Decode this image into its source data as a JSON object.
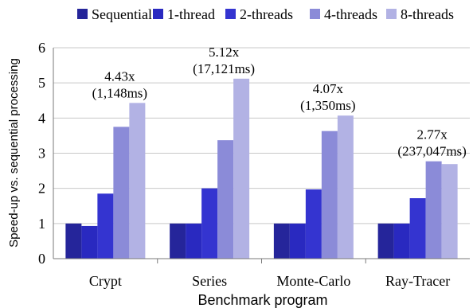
{
  "chart_data": {
    "type": "bar",
    "title": "",
    "xlabel": "Benchmark program",
    "ylabel": "Speed-up vs. sequential processing",
    "ylim": [
      0,
      6
    ],
    "yticks": [
      "0",
      "1",
      "2",
      "3",
      "4",
      "5",
      "6"
    ],
    "grid": true,
    "legend_position": "top",
    "categories": [
      "Crypt",
      "Series",
      "Monte-Carlo",
      "Ray-Tracer"
    ],
    "series": [
      {
        "name": "Sequential",
        "color": "#25259a",
        "values": [
          1.0,
          1.0,
          1.0,
          1.0
        ]
      },
      {
        "name": "1-thread",
        "color": "#2929c0",
        "values": [
          0.93,
          1.0,
          1.0,
          1.0
        ]
      },
      {
        "name": "2-threads",
        "color": "#3434d0",
        "values": [
          1.85,
          2.0,
          1.97,
          1.72
        ]
      },
      {
        "name": "4-threads",
        "color": "#8b8bd8",
        "values": [
          3.75,
          3.37,
          3.63,
          2.77
        ]
      },
      {
        "name": "8-threads",
        "color": "#b2b2e4",
        "values": [
          4.43,
          5.12,
          4.07,
          2.69
        ]
      }
    ],
    "annotations": [
      {
        "category": "Crypt",
        "line1": "4.43x",
        "line2": "(1,148ms)"
      },
      {
        "category": "Series",
        "line1": "5.12x",
        "line2": "(17,121ms)"
      },
      {
        "category": "Monte-Carlo",
        "line1": "4.07x",
        "line2": "(1,350ms)"
      },
      {
        "category": "Ray-Tracer",
        "line1": "2.77x",
        "line2": "(237,047ms)"
      }
    ]
  }
}
